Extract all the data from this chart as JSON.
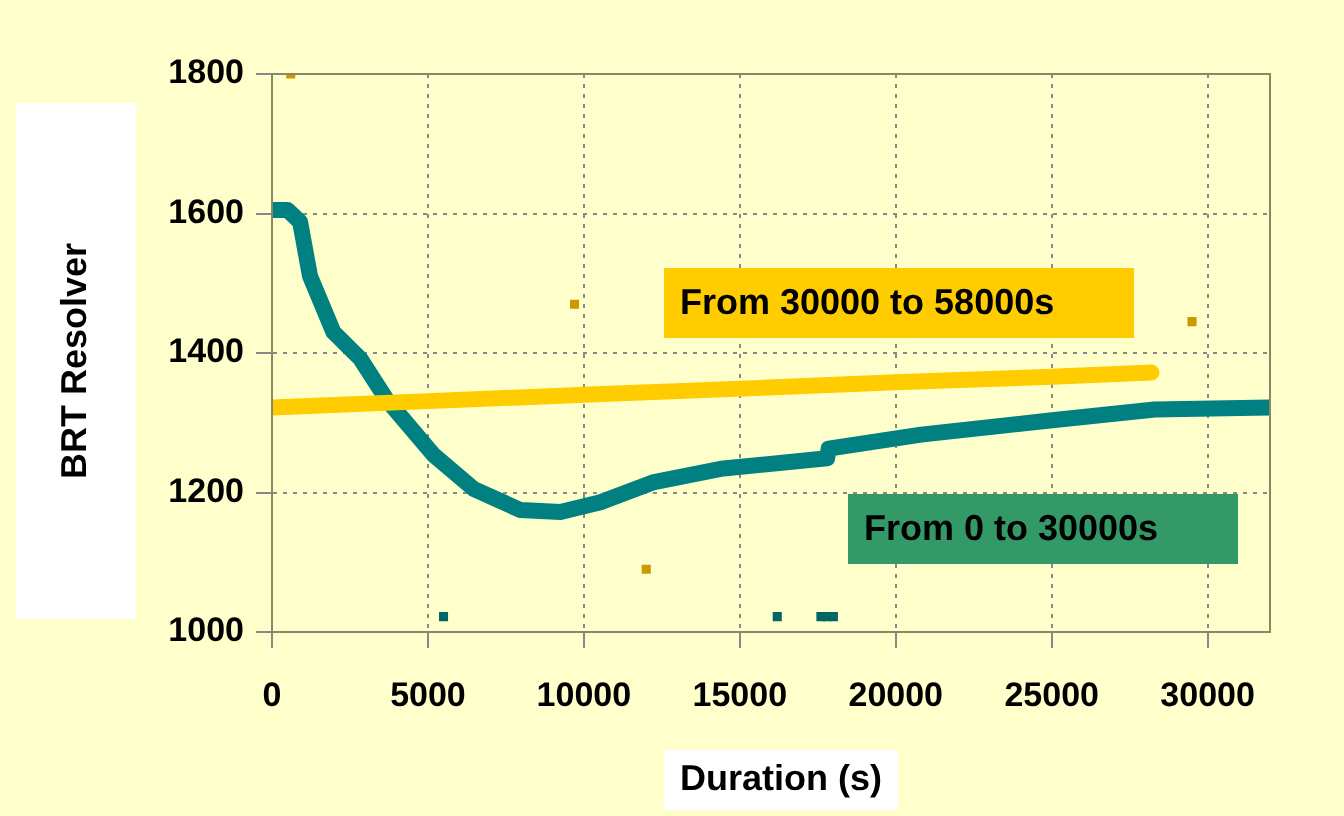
{
  "chart_data": {
    "type": "line",
    "xlabel": "Duration (s)",
    "ylabel": "BRT Resolver",
    "xlim": [
      0,
      32000
    ],
    "xticks": [
      0,
      5000,
      10000,
      15000,
      20000,
      25000,
      30000
    ],
    "ylim": [
      1000,
      1800
    ],
    "yticks": [
      1000,
      1200,
      1400,
      1600,
      1800
    ],
    "grid": true,
    "legend": false,
    "marker": "none",
    "series": [
      {
        "name": "From 30000 to 58000s",
        "color": "#ffcc00",
        "x": [
          0,
          5000,
          10000,
          15670,
          20000,
          25000,
          28200
        ],
        "values": [
          1322,
          1331,
          1340,
          1350,
          1358,
          1366,
          1372
        ]
      },
      {
        "name": "From 0 to 30000s",
        "color": "#008080",
        "x": [
          0,
          500,
          900,
          1220,
          1970,
          2830,
          3680,
          5180,
          6470,
          7960,
          9250,
          10530,
          12250,
          14390,
          17800,
          17850,
          20810,
          25090,
          28300,
          32000
        ],
        "values": [
          1605,
          1605,
          1588,
          1510,
          1430,
          1392,
          1333,
          1254,
          1205,
          1175,
          1172,
          1186,
          1215,
          1234,
          1249,
          1263,
          1283,
          1304,
          1319,
          1322
        ]
      },
      {
        "type": "scatter",
        "marker": "square",
        "color": "#cc9900",
        "x": [
          600,
          9700,
          12000,
          29500
        ],
        "values": [
          1800,
          1470,
          1090,
          1445
        ]
      },
      {
        "type": "scatter",
        "marker": "square",
        "color": "#006666",
        "x": [
          5500,
          16200,
          17600,
          17800,
          18000
        ],
        "values": [
          1022,
          1022,
          1022,
          1022,
          1022
        ]
      }
    ]
  }
}
